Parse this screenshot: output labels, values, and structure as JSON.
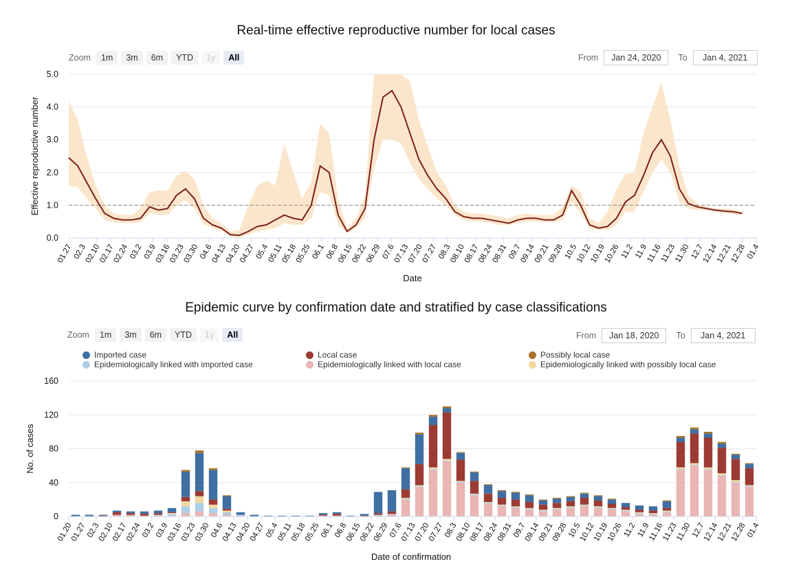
{
  "chart_data": [
    {
      "type": "line",
      "title": "Real-time effective reproductive number for local cases",
      "xlabel": "Date",
      "ylabel": "Effective reproductive number",
      "ylim": [
        0,
        5
      ],
      "yticks": [
        "0.0",
        "1.0",
        "2.0",
        "3.0",
        "4.0",
        "5.0"
      ],
      "xticks": [
        "01.27",
        "02.3",
        "02.10",
        "02.17",
        "02.24",
        "03.2",
        "03.9",
        "03.16",
        "03.23",
        "03.30",
        "04.6",
        "04.13",
        "04.20",
        "04.27",
        "05.4",
        "05.11",
        "05.18",
        "05.25",
        "06.1",
        "06.8",
        "06.15",
        "06.22",
        "06.29",
        "07.6",
        "07.13",
        "07.20",
        "07.27",
        "08.3",
        "08.10",
        "08.17",
        "08.24",
        "08.31",
        "09.7",
        "09.14",
        "09.21",
        "09.28",
        "10.5",
        "10.12",
        "10.19",
        "10.26",
        "11.2",
        "11.9",
        "11.16",
        "11.23",
        "11.30",
        "12.7",
        "12.14",
        "12.21",
        "12.28",
        "01.4"
      ],
      "reference_line": 1.0,
      "zoom": {
        "label": "Zoom",
        "buttons": [
          "1m",
          "3m",
          "6m",
          "YTD",
          "1y",
          "All"
        ],
        "active": "All",
        "disabled": "1y"
      },
      "range": {
        "from_label": "From",
        "from": "Jan 24, 2020",
        "to_label": "To",
        "to": "Jan 4, 2021"
      },
      "series": [
        {
          "color": "#7b1f1a",
          "band_color": "#fbe6cc",
          "points": [
            [
              0,
              2.45
            ],
            [
              1,
              2.2
            ],
            [
              2,
              1.7
            ],
            [
              3,
              1.2
            ],
            [
              4,
              0.75
            ],
            [
              5,
              0.6
            ],
            [
              6,
              0.55
            ],
            [
              7,
              0.55
            ],
            [
              8,
              0.6
            ],
            [
              9,
              0.95
            ],
            [
              10,
              0.85
            ],
            [
              11,
              0.9
            ],
            [
              12,
              1.3
            ],
            [
              13,
              1.5
            ],
            [
              14,
              1.2
            ],
            [
              15,
              0.6
            ],
            [
              16,
              0.4
            ],
            [
              17,
              0.3
            ],
            [
              18,
              0.1
            ],
            [
              19,
              0.08
            ],
            [
              20,
              0.2
            ],
            [
              21,
              0.35
            ],
            [
              22,
              0.4
            ],
            [
              23,
              0.55
            ],
            [
              24,
              0.7
            ],
            [
              25,
              0.6
            ],
            [
              26,
              0.55
            ],
            [
              27,
              1.0
            ],
            [
              28,
              2.2
            ],
            [
              29,
              2.0
            ],
            [
              30,
              0.7
            ],
            [
              31,
              0.2
            ],
            [
              32,
              0.4
            ],
            [
              33,
              0.9
            ],
            [
              34,
              3.0
            ],
            [
              35,
              4.3
            ],
            [
              36,
              4.5
            ],
            [
              37,
              4.0
            ],
            [
              38,
              3.2
            ],
            [
              39,
              2.4
            ],
            [
              40,
              1.9
            ],
            [
              41,
              1.5
            ],
            [
              42,
              1.2
            ],
            [
              43,
              0.8
            ],
            [
              44,
              0.65
            ],
            [
              45,
              0.6
            ],
            [
              46,
              0.6
            ],
            [
              47,
              0.55
            ],
            [
              48,
              0.5
            ],
            [
              49,
              0.45
            ],
            [
              50,
              0.55
            ],
            [
              51,
              0.6
            ],
            [
              52,
              0.6
            ],
            [
              53,
              0.55
            ],
            [
              54,
              0.55
            ],
            [
              55,
              0.7
            ],
            [
              56,
              1.45
            ],
            [
              57,
              1.0
            ],
            [
              58,
              0.4
            ],
            [
              59,
              0.3
            ],
            [
              60,
              0.35
            ],
            [
              61,
              0.6
            ],
            [
              62,
              1.1
            ],
            [
              63,
              1.3
            ],
            [
              64,
              1.9
            ],
            [
              65,
              2.6
            ],
            [
              66,
              3.0
            ],
            [
              67,
              2.5
            ],
            [
              68,
              1.5
            ],
            [
              69,
              1.05
            ],
            [
              70,
              0.95
            ],
            [
              71,
              0.9
            ],
            [
              72,
              0.85
            ],
            [
              73,
              0.82
            ],
            [
              74,
              0.8
            ],
            [
              75,
              0.75
            ]
          ],
          "band_upper": [
            4.2,
            3.6,
            2.5,
            1.6,
            1.0,
            0.75,
            0.7,
            0.7,
            0.9,
            1.4,
            1.45,
            1.45,
            1.9,
            2.05,
            1.8,
            1.0,
            0.6,
            0.45,
            0.2,
            0.25,
            1.0,
            1.6,
            1.75,
            1.6,
            2.9,
            2.0,
            1.2,
            1.7,
            3.5,
            3.2,
            1.2,
            0.3,
            0.6,
            1.3,
            5.0,
            5.0,
            5.0,
            5.0,
            4.8,
            3.6,
            2.8,
            2.0,
            1.6,
            1.0,
            0.8,
            0.75,
            0.75,
            0.7,
            0.65,
            0.6,
            0.7,
            0.75,
            0.7,
            0.7,
            0.7,
            0.95,
            1.6,
            1.4,
            0.6,
            0.45,
            0.8,
            1.5,
            1.95,
            2.0,
            3.2,
            4.0,
            4.75,
            3.6,
            2.2,
            1.3,
            1.05,
            0.95,
            0.9,
            0.9,
            0.88,
            0.8
          ],
          "band_lower": [
            1.6,
            1.55,
            1.2,
            0.9,
            0.55,
            0.48,
            0.45,
            0.45,
            0.48,
            0.75,
            0.7,
            0.7,
            1.0,
            1.15,
            0.9,
            0.42,
            0.3,
            0.22,
            0.05,
            0.02,
            0.1,
            0.2,
            0.25,
            0.3,
            0.45,
            0.4,
            0.4,
            0.6,
            1.4,
            1.3,
            0.4,
            0.15,
            0.3,
            0.6,
            2.1,
            3.0,
            3.0,
            2.9,
            2.3,
            1.8,
            1.5,
            1.2,
            1.0,
            0.7,
            0.55,
            0.5,
            0.5,
            0.45,
            0.4,
            0.4,
            0.45,
            0.5,
            0.5,
            0.48,
            0.48,
            0.55,
            1.1,
            0.75,
            0.3,
            0.25,
            0.25,
            0.4,
            0.8,
            0.8,
            1.4,
            2.0,
            2.4,
            2.0,
            1.1,
            0.9,
            0.85,
            0.85,
            0.8,
            0.75,
            0.72,
            0.7
          ]
        }
      ]
    },
    {
      "type": "bar",
      "stacked": true,
      "title": "Epidemic curve by confirmation date and stratified by case classifications",
      "xlabel": "Date of confirmation",
      "ylabel": "No. of cases",
      "ylim": [
        0,
        160
      ],
      "yticks": [
        "0",
        "40",
        "80",
        "120",
        "160"
      ],
      "xticks": [
        "01.20",
        "01.27",
        "02.3",
        "02.10",
        "02.17",
        "02.24",
        "03.2",
        "03.9",
        "03.16",
        "03.23",
        "03.30",
        "04.6",
        "04.13",
        "04.20",
        "04.27",
        "05.4",
        "05.11",
        "05.18",
        "05.25",
        "06.1",
        "06.8",
        "06.15",
        "06.22",
        "06.29",
        "07.6",
        "07.13",
        "07.20",
        "07.27",
        "08.3",
        "08.10",
        "08.17",
        "08.24",
        "08.31",
        "09.7",
        "09.14",
        "09.21",
        "09.28",
        "10.5",
        "10.12",
        "10.19",
        "10.26",
        "11.2",
        "11.9",
        "11.16",
        "11.23",
        "11.30",
        "12.7",
        "12.14",
        "12.21",
        "12.28",
        "01.4"
      ],
      "zoom": {
        "label": "Zoom",
        "buttons": [
          "1m",
          "3m",
          "6m",
          "YTD",
          "1y",
          "All"
        ],
        "active": "All",
        "disabled": "1y"
      },
      "range": {
        "from_label": "From",
        "from": "Jan 18, 2020",
        "to_label": "To",
        "to": "Jan 4, 2021"
      },
      "legend": [
        {
          "name": "Imported case",
          "color": "#3f6fa3"
        },
        {
          "name": "Local case",
          "color": "#9b3b33"
        },
        {
          "name": "Possibly local case",
          "color": "#a8742a"
        },
        {
          "name": "Epidemiologically linked with imported case",
          "color": "#aecfe8"
        },
        {
          "name": "Epidemiologically linked with local case",
          "color": "#e9b6b3"
        },
        {
          "name": "Epidemiologically linked with possibly local case",
          "color": "#f2d89e"
        }
      ],
      "weekly_peaks": {
        "categories": [
          "01.20",
          "01.27",
          "02.3",
          "02.10",
          "02.17",
          "02.24",
          "03.2",
          "03.9",
          "03.16",
          "03.23",
          "03.30",
          "04.6",
          "04.13",
          "04.20",
          "04.27",
          "05.4",
          "05.11",
          "05.18",
          "05.25",
          "06.1",
          "06.8",
          "06.15",
          "06.22",
          "06.29",
          "07.6",
          "07.13",
          "07.20",
          "07.27",
          "08.3",
          "08.10",
          "08.17",
          "08.24",
          "08.31",
          "09.7",
          "09.14",
          "09.21",
          "09.28",
          "10.5",
          "10.12",
          "10.19",
          "10.26",
          "11.2",
          "11.9",
          "11.16",
          "11.23",
          "11.30",
          "12.7",
          "12.14",
          "12.21",
          "12.28"
        ],
        "series": [
          {
            "name": "Imported case",
            "values": [
              2,
              2,
              1,
              2,
              2,
              3,
              3,
              5,
              30,
              45,
              35,
              15,
              3,
              2,
              1,
              1,
              1,
              1,
              2,
              2,
              1,
              2,
              25,
              25,
              25,
              35,
              10,
              5,
              8,
              10,
              10,
              8,
              8,
              8,
              5,
              5,
              5,
              5,
              5,
              5,
              5,
              5,
              5,
              8,
              5,
              5,
              5,
              5,
              5,
              5
            ]
          },
          {
            "name": "Local case",
            "values": [
              0,
              0,
              1,
              3,
              2,
              2,
              2,
              1,
              5,
              6,
              6,
              2,
              0,
              0,
              0,
              0,
              0,
              0,
              1,
              2,
              0,
              1,
              2,
              3,
              10,
              25,
              50,
              55,
              25,
              15,
              10,
              8,
              8,
              7,
              6,
              6,
              6,
              8,
              7,
              5,
              3,
              3,
              3,
              3,
              30,
              35,
              35,
              30,
              25,
              20
            ]
          },
          {
            "name": "Possibly local case",
            "values": [
              0,
              0,
              0,
              0,
              0,
              0,
              0,
              0,
              2,
              3,
              2,
              1,
              0,
              0,
              0,
              0,
              0,
              0,
              0,
              0,
              0,
              0,
              0,
              0,
              1,
              2,
              2,
              2,
              1,
              1,
              1,
              1,
              1,
              1,
              1,
              1,
              1,
              1,
              1,
              1,
              0,
              0,
              0,
              1,
              2,
              2,
              2,
              2,
              1,
              1
            ]
          },
          {
            "name": "Epidemiologically linked with imported case",
            "values": [
              0,
              0,
              0,
              0,
              0,
              0,
              1,
              2,
              8,
              10,
              6,
              3,
              1,
              0,
              0,
              0,
              0,
              0,
              0,
              0,
              0,
              0,
              1,
              1,
              1,
              1,
              1,
              1,
              1,
              1,
              1,
              1,
              1,
              1,
              1,
              1,
              1,
              1,
              1,
              1,
              1,
              1,
              1,
              1,
              1,
              1,
              1,
              1,
              1,
              1
            ]
          },
          {
            "name": "Epidemiologically linked with local case",
            "values": [
              0,
              0,
              0,
              2,
              2,
              1,
              1,
              1,
              4,
              6,
              4,
              2,
              1,
              0,
              0,
              0,
              0,
              0,
              1,
              1,
              0,
              0,
              1,
              2,
              20,
              35,
              55,
              65,
              40,
              25,
              15,
              12,
              10,
              8,
              6,
              8,
              10,
              12,
              10,
              8,
              6,
              3,
              2,
              5,
              55,
              60,
              55,
              48,
              40,
              35
            ]
          },
          {
            "name": "Epidemiologically linked with possibly local case",
            "values": [
              0,
              0,
              0,
              0,
              0,
              0,
              0,
              1,
              6,
              8,
              4,
              2,
              0,
              0,
              0,
              0,
              0,
              0,
              0,
              0,
              0,
              0,
              0,
              0,
              1,
              1,
              2,
              2,
              1,
              1,
              1,
              1,
              1,
              1,
              1,
              1,
              1,
              1,
              1,
              1,
              1,
              1,
              1,
              1,
              2,
              2,
              2,
              2,
              2,
              1
            ]
          }
        ]
      }
    }
  ]
}
